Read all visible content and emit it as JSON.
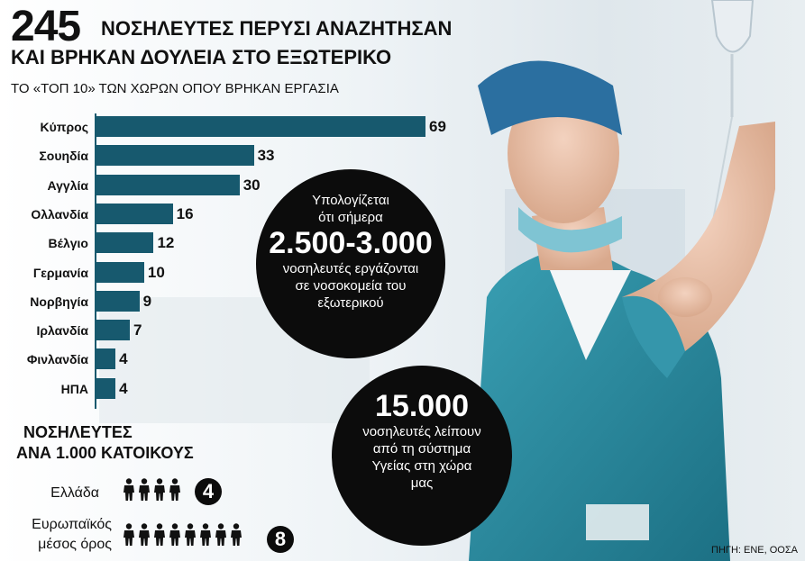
{
  "header": {
    "big_number": "245",
    "line1": "ΝΟΣΗΛΕΥΤΕΣ ΠΕΡΥΣΙ ΑΝΑΖΗΤΗΣΑΝ",
    "line2": "ΚΑΙ ΒΡΗΚΑΝ ΔΟΥΛΕΙΑ ΣΤΟ ΕΞΩΤΕΡΙΚΟ",
    "subtitle": "ΤΟ «ΤΟΠ 10» ΤΩΝ ΧΩΡΩΝ ΟΠΟΥ ΒΡΗΚΑΝ ΕΡΓΑΣΙΑ"
  },
  "chart_data": {
    "type": "bar",
    "orientation": "horizontal",
    "categories": [
      "Κύπρος",
      "Σουηδία",
      "Αγγλία",
      "Ολλανδία",
      "Βέλγιο",
      "Γερμανία",
      "Νορβηγία",
      "Ιρλανδία",
      "Φινλανδία",
      "ΗΠΑ"
    ],
    "values": [
      69,
      33,
      30,
      16,
      12,
      10,
      9,
      7,
      4,
      4
    ],
    "xlim": [
      0,
      69
    ],
    "grid": false,
    "bar_color": "#17596e"
  },
  "callouts": {
    "c1_line1": "Υπολογίζεται",
    "c1_line2": "ότι σήμερα",
    "c1_big": "2.500-3.000",
    "c1_line3": "νοσηλευτές εργάζονται",
    "c1_line4": "σε νοσοκομεία του",
    "c1_line5": "εξωτερικού",
    "c2_big": "15.000",
    "c2_line1": "νοσηλευτές λείπουν",
    "c2_line2": "από τη σύστημα",
    "c2_line3": "Υγείας στη χώρα",
    "c2_line4": "μας"
  },
  "density": {
    "title_line1": "ΝΟΣΗΛΕΥΤΕΣ",
    "title_line2": "ΑΝΑ 1.000 ΚΑΤΟΙΚΟΥΣ",
    "rows": [
      {
        "label": "Ελλάδα",
        "label2": "",
        "value": 4
      },
      {
        "label": "Ευρωπαϊκός",
        "label2": "μέσος όρος",
        "value": 8
      }
    ]
  },
  "source": "ΠΗΓΗ: ΕΝΕ, ΟΟΣΑ",
  "colors": {
    "accent": "#17596e",
    "circle": "#0c0c0c",
    "scrubs": "#2a8ba0"
  }
}
